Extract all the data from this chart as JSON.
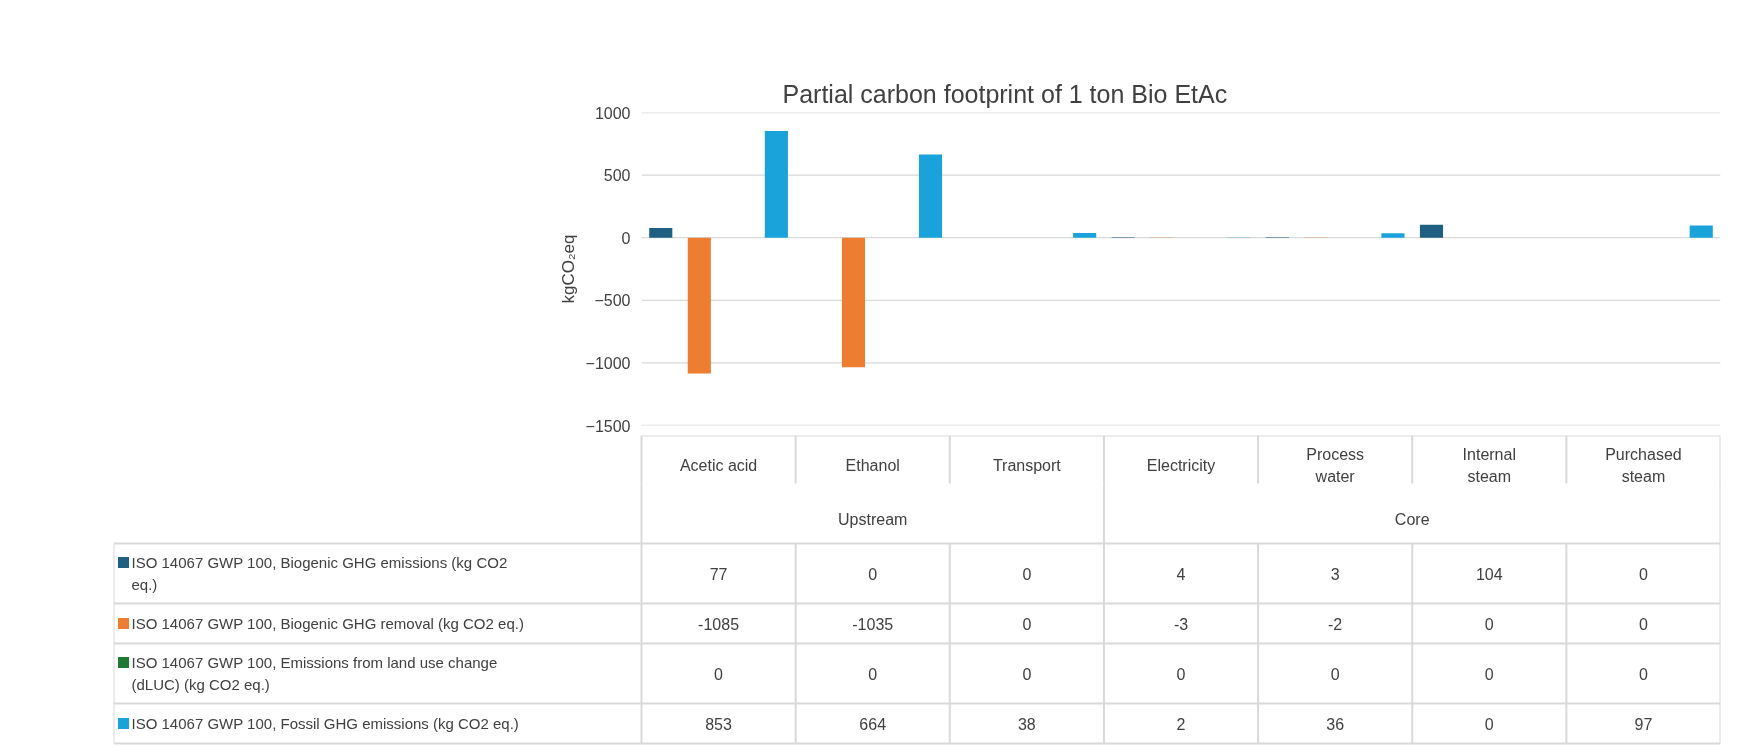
{
  "chart_data": {
    "type": "bar",
    "title": "Partial carbon footprint of 1 ton Bio EtAc",
    "ylabel": "kgCO₂eq",
    "categories": [
      "Acetic acid",
      "Ethanol",
      "Transport",
      "Electricity",
      "Process water",
      "Internal steam",
      "Purchased steam"
    ],
    "annotations": [
      "Upstream",
      "Core"
    ],
    "series": [
      {
        "name": "ISO 14067 GWP 100, Biogenic GHG emissions (kg CO2 eq.)",
        "color": "#1f5f82",
        "values": [
          77,
          0,
          0,
          4,
          3,
          104,
          0
        ]
      },
      {
        "name": "ISO 14067 GWP 100, Biogenic GHG removal (kg CO2 eq.)",
        "color": "#ed7d31",
        "values": [
          -1085,
          -1035,
          0,
          -3,
          -2,
          0,
          0
        ]
      },
      {
        "name": "ISO 14067 GWP 100, Emissions from land use change (dLUC) (kg CO2 eq.)",
        "color": "#1e7a33",
        "values": [
          0,
          0,
          0,
          0,
          0,
          0,
          0
        ]
      },
      {
        "name": "ISO 14067 GWP 100, Fossil GHG emissions (kg CO2 eq.)",
        "color": "#1aa3da",
        "values": [
          853,
          664,
          38,
          2,
          36,
          0,
          97
        ]
      }
    ],
    "ylim": [
      -1500,
      1000
    ],
    "yticks": [
      -1500,
      -1000,
      -500,
      0,
      500,
      1000
    ],
    "grid": "y",
    "legend": "bottom",
    "data_labels": true
  }
}
